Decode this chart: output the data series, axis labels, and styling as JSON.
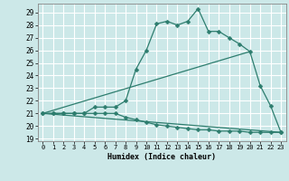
{
  "xlabel": "Humidex (Indice chaleur)",
  "bg_color": "#cce8e8",
  "grid_color": "#ffffff",
  "line_color": "#2d7d6e",
  "xlim": [
    -0.5,
    23.5
  ],
  "ylim": [
    18.8,
    29.7
  ],
  "yticks": [
    19,
    20,
    21,
    22,
    23,
    24,
    25,
    26,
    27,
    28,
    29
  ],
  "xticks": [
    0,
    1,
    2,
    3,
    4,
    5,
    6,
    7,
    8,
    9,
    10,
    11,
    12,
    13,
    14,
    15,
    16,
    17,
    18,
    19,
    20,
    21,
    22,
    23
  ],
  "line1_x": [
    0,
    1,
    2,
    3,
    4,
    5,
    6,
    7,
    8,
    9,
    10,
    11,
    12,
    13,
    14,
    15,
    16,
    17,
    18,
    19,
    20,
    21,
    22,
    23
  ],
  "line1_y": [
    21,
    21,
    21,
    21,
    21,
    21.5,
    21.5,
    21.5,
    22,
    24.5,
    26,
    28.1,
    28.3,
    28.0,
    28.3,
    29.3,
    27.5,
    27.5,
    27.0,
    26.5,
    25.9,
    23.2,
    21.6,
    19.5
  ],
  "line2_x": [
    0,
    1,
    2,
    3,
    4,
    5,
    6,
    7,
    8,
    9,
    10,
    11,
    12,
    13,
    14,
    15,
    16,
    17,
    18,
    19,
    20,
    21,
    22,
    23
  ],
  "line2_y": [
    21,
    21,
    21,
    21,
    21,
    21,
    21,
    21,
    20.7,
    20.5,
    20.3,
    20.1,
    20.0,
    19.9,
    19.8,
    19.7,
    19.7,
    19.6,
    19.6,
    19.6,
    19.5,
    19.5,
    19.5,
    19.5
  ],
  "line3_x": [
    0,
    20
  ],
  "line3_y": [
    21,
    25.9
  ],
  "line4_x": [
    0,
    23
  ],
  "line4_y": [
    21,
    19.5
  ],
  "marker": "D",
  "markersize": 2.5
}
